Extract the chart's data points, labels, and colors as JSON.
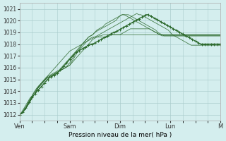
{
  "bg_color": "#d4eeee",
  "grid_color": "#aacccc",
  "line_color": "#2d6a2d",
  "ylabel": "Pression niveau de la mer( hPa )",
  "ylim": [
    1011.5,
    1021.5
  ],
  "yticks": [
    1012,
    1013,
    1014,
    1015,
    1016,
    1017,
    1018,
    1019,
    1020,
    1021
  ],
  "day_labels": [
    "Ven",
    "Sam",
    "Dim",
    "Lun",
    "M"
  ],
  "day_positions": [
    0,
    48,
    96,
    144,
    192
  ],
  "thin_lines": [
    [
      1012.0,
      1012.1,
      1012.3,
      1012.5,
      1012.8,
      1013.1,
      1013.4,
      1013.7,
      1014.0,
      1014.3,
      1014.5,
      1014.7,
      1014.9,
      1015.1,
      1015.2,
      1015.3,
      1015.4,
      1015.5,
      1015.6,
      1015.7,
      1015.8,
      1015.9,
      1016.0,
      1016.1,
      1016.2,
      1016.4,
      1016.6,
      1016.8,
      1017.0,
      1017.2,
      1017.4,
      1017.6,
      1017.8,
      1018.0,
      1018.2,
      1018.4,
      1018.5,
      1018.6,
      1018.7,
      1018.7,
      1018.8,
      1018.8,
      1018.8,
      1018.8,
      1018.8,
      1018.8,
      1018.8,
      1018.8,
      1018.8,
      1018.8,
      1018.8,
      1018.8,
      1018.8,
      1018.8,
      1018.8,
      1018.8,
      1018.8,
      1018.8,
      1018.8,
      1018.8,
      1018.8,
      1018.8,
      1018.8,
      1018.8,
      1018.8,
      1018.8,
      1018.8,
      1018.8,
      1018.8,
      1018.8,
      1018.8,
      1018.8,
      1018.8,
      1018.8,
      1018.8,
      1018.8,
      1018.8,
      1018.8,
      1018.8,
      1018.8,
      1018.8,
      1018.8,
      1018.8,
      1018.8,
      1018.8,
      1018.8,
      1018.8,
      1018.8,
      1018.8,
      1018.8,
      1018.8,
      1018.8,
      1018.8,
      1018.8,
      1018.8,
      1018.8,
      1018.8
    ],
    [
      1012.0,
      1012.1,
      1012.3,
      1012.5,
      1012.8,
      1013.1,
      1013.4,
      1013.7,
      1014.0,
      1014.3,
      1014.5,
      1014.7,
      1014.9,
      1015.1,
      1015.2,
      1015.3,
      1015.4,
      1015.5,
      1015.6,
      1015.7,
      1015.8,
      1015.9,
      1016.0,
      1016.1,
      1016.2,
      1016.5,
      1016.8,
      1017.1,
      1017.4,
      1017.6,
      1017.8,
      1018.0,
      1018.2,
      1018.4,
      1018.5,
      1018.6,
      1018.6,
      1018.6,
      1018.6,
      1018.6,
      1018.6,
      1018.6,
      1018.6,
      1018.7,
      1018.8,
      1018.8,
      1018.8,
      1018.8,
      1018.8,
      1018.9,
      1019.0,
      1019.1,
      1019.2,
      1019.3,
      1019.3,
      1019.3,
      1019.3,
      1019.3,
      1019.3,
      1019.3,
      1019.3,
      1019.3,
      1019.3,
      1019.2,
      1019.1,
      1019.0,
      1018.9,
      1018.8,
      1018.8,
      1018.8,
      1018.8,
      1018.8,
      1018.8,
      1018.8,
      1018.8,
      1018.8,
      1018.8,
      1018.8,
      1018.8,
      1018.8,
      1018.8,
      1018.8,
      1018.8,
      1018.8,
      1018.8,
      1018.8,
      1018.8,
      1018.8,
      1018.8,
      1018.8,
      1018.8,
      1018.8,
      1018.8,
      1018.8,
      1018.8,
      1018.8,
      1018.8
    ],
    [
      1012.0,
      1012.1,
      1012.3,
      1012.5,
      1012.8,
      1013.1,
      1013.4,
      1013.7,
      1014.0,
      1014.3,
      1014.5,
      1014.7,
      1014.9,
      1015.1,
      1015.2,
      1015.3,
      1015.4,
      1015.5,
      1015.6,
      1015.7,
      1015.8,
      1015.9,
      1016.0,
      1016.2,
      1016.4,
      1016.7,
      1017.0,
      1017.3,
      1017.5,
      1017.7,
      1018.0,
      1018.2,
      1018.4,
      1018.6,
      1018.7,
      1018.8,
      1019.0,
      1019.1,
      1019.2,
      1019.3,
      1019.4,
      1019.5,
      1019.6,
      1019.7,
      1019.8,
      1019.9,
      1020.0,
      1020.2,
      1020.4,
      1020.5,
      1020.5,
      1020.4,
      1020.3,
      1020.2,
      1020.1,
      1020.0,
      1019.9,
      1019.8,
      1019.7,
      1019.6,
      1019.5,
      1019.4,
      1019.3,
      1019.2,
      1019.1,
      1019.0,
      1018.9,
      1018.8,
      1018.7,
      1018.7,
      1018.7,
      1018.7,
      1018.7,
      1018.7,
      1018.7,
      1018.7,
      1018.7,
      1018.7,
      1018.7,
      1018.7,
      1018.7,
      1018.7,
      1018.7,
      1018.7,
      1018.7,
      1018.7,
      1018.7,
      1018.7,
      1018.7,
      1018.7,
      1018.7,
      1018.7,
      1018.7,
      1018.7,
      1018.7,
      1018.7,
      1018.7
    ],
    [
      1012.0,
      1012.1,
      1012.4,
      1012.6,
      1013.0,
      1013.3,
      1013.6,
      1013.9,
      1014.1,
      1014.4,
      1014.6,
      1014.8,
      1015.0,
      1015.2,
      1015.3,
      1015.4,
      1015.5,
      1015.6,
      1015.7,
      1015.8,
      1016.0,
      1016.2,
      1016.4,
      1016.6,
      1016.8,
      1017.0,
      1017.2,
      1017.4,
      1017.6,
      1017.8,
      1018.0,
      1018.2,
      1018.4,
      1018.6,
      1018.7,
      1018.8,
      1019.0,
      1019.2,
      1019.3,
      1019.4,
      1019.5,
      1019.7,
      1019.8,
      1019.9,
      1020.0,
      1020.1,
      1020.2,
      1020.3,
      1020.4,
      1020.5,
      1020.5,
      1020.5,
      1020.5,
      1020.4,
      1020.3,
      1020.2,
      1020.1,
      1020.0,
      1019.9,
      1019.8,
      1019.7,
      1019.6,
      1019.5,
      1019.4,
      1019.3,
      1019.2,
      1019.0,
      1018.9,
      1018.8,
      1018.7,
      1018.7,
      1018.7,
      1018.7,
      1018.7,
      1018.7,
      1018.7,
      1018.7,
      1018.7,
      1018.7,
      1018.7,
      1018.7,
      1018.7,
      1018.7,
      1018.7,
      1018.7,
      1018.7,
      1018.7,
      1018.7,
      1018.7,
      1018.7,
      1018.7,
      1018.7,
      1018.7,
      1018.7,
      1018.7,
      1018.7,
      1018.7
    ],
    [
      1012.0,
      1012.2,
      1012.5,
      1012.8,
      1013.1,
      1013.4,
      1013.6,
      1013.9,
      1014.2,
      1014.4,
      1014.6,
      1014.8,
      1015.0,
      1015.2,
      1015.4,
      1015.6,
      1015.8,
      1016.0,
      1016.2,
      1016.4,
      1016.6,
      1016.8,
      1017.0,
      1017.2,
      1017.4,
      1017.5,
      1017.6,
      1017.7,
      1017.8,
      1017.9,
      1018.0,
      1018.1,
      1018.2,
      1018.3,
      1018.4,
      1018.5,
      1018.6,
      1018.7,
      1018.8,
      1018.9,
      1019.0,
      1019.1,
      1019.2,
      1019.3,
      1019.4,
      1019.5,
      1019.6,
      1019.7,
      1019.8,
      1019.9,
      1020.0,
      1020.1,
      1020.2,
      1020.3,
      1020.4,
      1020.5,
      1020.6,
      1020.5,
      1020.5,
      1020.4,
      1020.3,
      1020.2,
      1020.1,
      1020.0,
      1019.9,
      1019.8,
      1019.7,
      1019.6,
      1019.5,
      1019.4,
      1019.3,
      1019.2,
      1019.0,
      1018.8,
      1018.7,
      1018.6,
      1018.5,
      1018.4,
      1018.3,
      1018.2,
      1018.1,
      1018.0,
      1017.9,
      1017.9,
      1017.9,
      1017.9,
      1017.9,
      1017.9,
      1017.9,
      1017.9,
      1017.9,
      1017.9,
      1017.9,
      1017.9,
      1017.9,
      1017.9,
      1017.9
    ]
  ],
  "main_line": [
    1012.0,
    1012.05,
    1012.1,
    1012.2,
    1012.3,
    1012.45,
    1012.6,
    1012.75,
    1012.9,
    1013.05,
    1013.2,
    1013.35,
    1013.5,
    1013.6,
    1013.7,
    1013.8,
    1013.9,
    1014.0,
    1014.1,
    1014.2,
    1014.3,
    1014.4,
    1014.5,
    1014.6,
    1014.7,
    1014.8,
    1014.9,
    1015.0,
    1015.1,
    1015.15,
    1015.2,
    1015.25,
    1015.3,
    1015.35,
    1015.4,
    1015.45,
    1015.5,
    1015.6,
    1015.7,
    1015.8,
    1015.9,
    1016.0,
    1016.1,
    1016.2,
    1016.3,
    1016.4,
    1016.5,
    1016.6,
    1016.7,
    1016.8,
    1016.9,
    1017.0,
    1017.1,
    1017.2,
    1017.3,
    1017.35,
    1017.4,
    1017.45,
    1017.5,
    1017.55,
    1017.6,
    1017.65,
    1017.7,
    1017.75,
    1017.8,
    1017.85,
    1017.9,
    1017.95,
    1018.0,
    1018.0,
    1018.0,
    1018.05,
    1018.1,
    1018.15,
    1018.2,
    1018.25,
    1018.3,
    1018.35,
    1018.4,
    1018.45,
    1018.5,
    1018.55,
    1018.6,
    1018.65,
    1018.7,
    1018.75,
    1018.8,
    1018.85,
    1018.9,
    1018.95,
    1019.0,
    1019.0,
    1019.05,
    1019.1,
    1019.15,
    1019.2,
    1019.25,
    1019.3,
    1019.35,
    1019.4,
    1019.45,
    1019.5,
    1019.55,
    1019.6,
    1019.65,
    1019.7,
    1019.75,
    1019.8,
    1019.85,
    1019.9,
    1019.95,
    1020.0,
    1020.05,
    1020.1,
    1020.15,
    1020.2,
    1020.25,
    1020.3,
    1020.35,
    1020.4,
    1020.45,
    1020.5,
    1020.5,
    1020.5,
    1020.45,
    1020.4,
    1020.35,
    1020.3,
    1020.25,
    1020.2,
    1020.15,
    1020.1,
    1020.05,
    1020.0,
    1019.95,
    1019.9,
    1019.85,
    1019.8,
    1019.75,
    1019.7,
    1019.65,
    1019.6,
    1019.55,
    1019.5,
    1019.45,
    1019.4,
    1019.35,
    1019.3,
    1019.25,
    1019.2,
    1019.15,
    1019.1,
    1019.05,
    1019.0,
    1018.95,
    1018.9,
    1018.85,
    1018.8,
    1018.75,
    1018.7,
    1018.65,
    1018.6,
    1018.55,
    1018.5,
    1018.45,
    1018.4,
    1018.35,
    1018.3,
    1018.25,
    1018.2,
    1018.15,
    1018.1,
    1018.05,
    1018.0,
    1018.0,
    1018.0,
    1018.0,
    1018.0,
    1018.0,
    1018.0,
    1018.0,
    1018.0,
    1018.0,
    1018.0,
    1018.0,
    1018.0,
    1018.0,
    1018.0,
    1018.0,
    1018.0,
    1018.0,
    1018.0,
    1018.0,
    1018.0,
    1018.0,
    1018.0
  ]
}
